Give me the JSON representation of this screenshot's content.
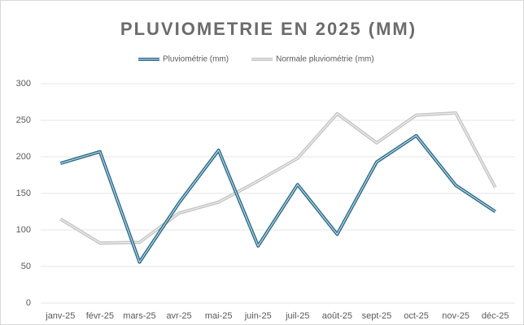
{
  "chart_data": {
    "type": "line",
    "title": "PLUVIOMETRIE EN 2025 (MM)",
    "categories": [
      "janv-25",
      "févr-25",
      "mars-25",
      "avr-25",
      "mai-25",
      "juin-25",
      "juil-25",
      "août-25",
      "sept-25",
      "oct-25",
      "nov-25",
      "déc-25"
    ],
    "series": [
      {
        "name": "Pluviométrie (mm)",
        "color": "#2e6f8e",
        "values": [
          191,
          207,
          56,
          137,
          209,
          78,
          162,
          94,
          193,
          229,
          161,
          125
        ]
      },
      {
        "name": "Normale pluviométrie (mm)",
        "color": "#c6c6c6",
        "values": [
          115,
          82,
          83,
          123,
          138,
          167,
          198,
          259,
          219,
          257,
          260,
          158
        ]
      }
    ],
    "ylim": [
      0,
      300
    ],
    "yticks": [
      0,
      50,
      100,
      150,
      200,
      250,
      300
    ],
    "grid": true,
    "legend": "top"
  }
}
